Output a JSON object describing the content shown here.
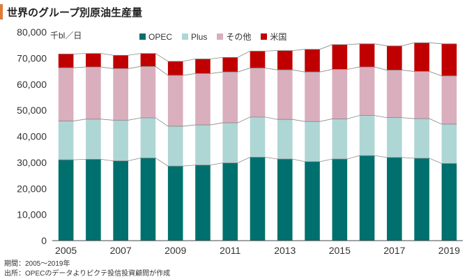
{
  "title": "世界のグループ別原油生産量",
  "notes": {
    "period": "期間：2005～2019年",
    "source": "出所：OPECのデータよりピクテ投信投資顧問が作成"
  },
  "chart_data": {
    "type": "bar",
    "stacked": true,
    "unit_label": "千bl／日",
    "categories": [
      "2005",
      "2006",
      "2007",
      "2008",
      "2009",
      "2010",
      "2011",
      "2012",
      "2013",
      "2014",
      "2015",
      "2016",
      "2017",
      "2018",
      "2019"
    ],
    "x_tick_labels": [
      "2005",
      "2007",
      "2009",
      "2011",
      "2013",
      "2015",
      "2017",
      "2019"
    ],
    "ylim": [
      0,
      80000
    ],
    "y_ticks": [
      "0",
      "10,000",
      "20,000",
      "30,000",
      "40,000",
      "50,000",
      "60,000",
      "70,000",
      "80,000"
    ],
    "legend_position": "top",
    "series": [
      {
        "name": "OPEC",
        "color": "#00706e",
        "values": [
          31000,
          31200,
          30600,
          31700,
          28600,
          29000,
          29800,
          32000,
          31300,
          30300,
          31300,
          32600,
          31900,
          31600,
          29600
        ]
      },
      {
        "name": "Plus",
        "color": "#aed6d4",
        "values": [
          14900,
          15400,
          15600,
          15400,
          15300,
          15400,
          15400,
          15400,
          15200,
          15400,
          15400,
          15400,
          15300,
          15200,
          15100
        ]
      },
      {
        "name": "その他",
        "color": "#d9aebd",
        "values": [
          20400,
          20000,
          19800,
          19700,
          19500,
          19700,
          19500,
          18800,
          19000,
          19000,
          19000,
          18600,
          18200,
          18100,
          18500
        ]
      },
      {
        "name": "米国",
        "color": "#c00000",
        "values": [
          5300,
          5200,
          5100,
          5000,
          5400,
          5600,
          5600,
          6500,
          7400,
          8700,
          9500,
          8900,
          9300,
          11000,
          12300
        ]
      }
    ]
  }
}
